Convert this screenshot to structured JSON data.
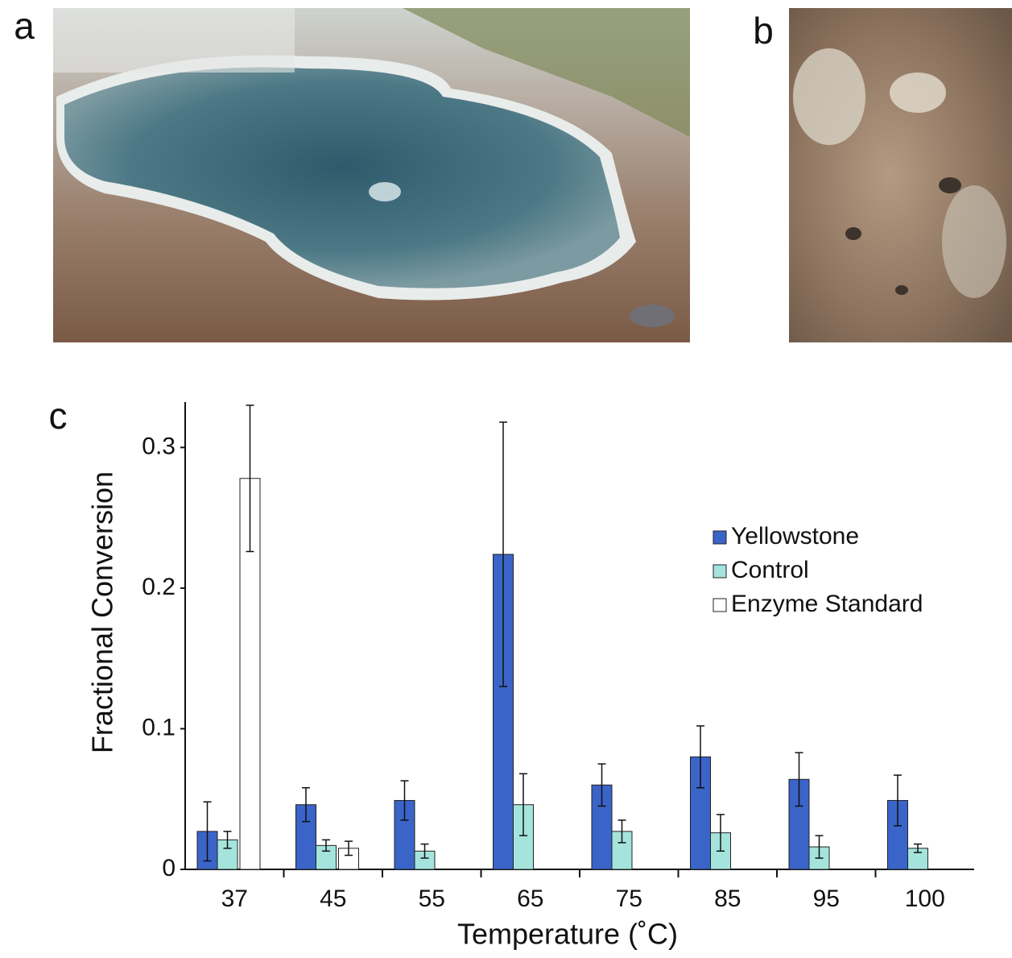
{
  "panel_labels": [
    "a",
    "b",
    "c"
  ],
  "chart_data": {
    "type": "bar",
    "ylabel": "Fractional Conversion",
    "xlabel": "Temperature (˚C)",
    "categories": [
      "37",
      "45",
      "55",
      "65",
      "75",
      "85",
      "95",
      "100"
    ],
    "series": [
      {
        "name": "Yellowstone",
        "color": "#3a64c8",
        "values": [
          0.027,
          0.046,
          0.049,
          0.224,
          0.06,
          0.08,
          0.064,
          0.049
        ],
        "errors": [
          0.021,
          0.012,
          0.014,
          0.094,
          0.015,
          0.022,
          0.019,
          0.018
        ]
      },
      {
        "name": "Control",
        "color": "#a4e4dc",
        "values": [
          0.021,
          0.017,
          0.013,
          0.046,
          0.027,
          0.026,
          0.016,
          0.015
        ],
        "errors": [
          0.006,
          0.004,
          0.005,
          0.022,
          0.008,
          0.013,
          0.008,
          0.003
        ]
      },
      {
        "name": "Enzyme Standard",
        "color": "#ffffff",
        "values": [
          0.278,
          0.015,
          null,
          null,
          null,
          null,
          null,
          null
        ],
        "errors": [
          0.052,
          0.005,
          null,
          null,
          null,
          null,
          null,
          null
        ]
      }
    ],
    "ylim": [
      0,
      0.33
    ],
    "yticks": [
      0,
      0.1,
      0.2,
      0.3
    ],
    "legend": "right"
  }
}
